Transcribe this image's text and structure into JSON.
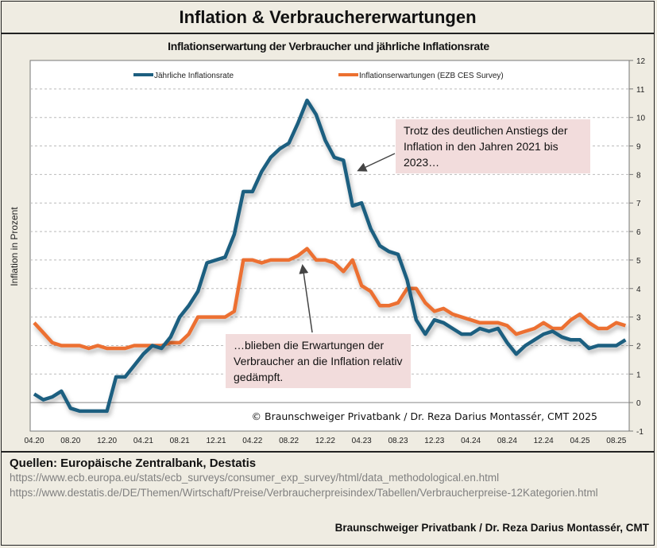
{
  "header": {
    "title": "Inflation & Verbrauchererwartungen"
  },
  "chart_data": {
    "type": "line",
    "title": "Inflationserwartung der Verbraucher und jährliche Inflationsrate",
    "ylabel": "Inflation in Prozent",
    "xlabel": "",
    "ylim": [
      -1,
      12
    ],
    "yticks": [
      -1,
      0,
      1,
      2,
      3,
      4,
      5,
      6,
      7,
      8,
      9,
      10,
      11,
      12
    ],
    "y_axis_side": "right",
    "grid": "horizontal dashed",
    "legend_placement": "top",
    "start_month": "04.20",
    "end_month": "09.25",
    "xtick_labels": [
      "04.20",
      "08.20",
      "12.20",
      "04.21",
      "08.21",
      "12.21",
      "04.22",
      "08.22",
      "12.22",
      "04.23",
      "08.23",
      "12.23",
      "04.24",
      "08.24",
      "12.24",
      "04.25",
      "08.25"
    ],
    "series": [
      {
        "name": "Jährliche Inflationsrate",
        "color": "#1d5f80",
        "values": [
          0.3,
          0.1,
          0.2,
          0.4,
          -0.2,
          -0.3,
          -0.3,
          -0.3,
          -0.3,
          0.9,
          0.9,
          1.3,
          1.7,
          2.0,
          1.9,
          2.3,
          3.0,
          3.4,
          3.9,
          4.9,
          5.0,
          5.1,
          5.9,
          7.4,
          7.4,
          8.1,
          8.6,
          8.9,
          9.1,
          9.8,
          10.6,
          10.1,
          9.2,
          8.6,
          8.5,
          6.9,
          7.0,
          6.1,
          5.5,
          5.3,
          5.2,
          4.3,
          2.9,
          2.4,
          2.9,
          2.8,
          2.6,
          2.4,
          2.4,
          2.6,
          2.5,
          2.6,
          2.1,
          1.7,
          2.0,
          2.2,
          2.4,
          2.5,
          2.3,
          2.2,
          2.2,
          1.9,
          2.0,
          2.0,
          2.0,
          2.2
        ]
      },
      {
        "name": "Inflationserwartungen (EZB CES Survey)",
        "color": "#ec7030",
        "values": [
          2.8,
          2.45,
          2.1,
          2.0,
          2.0,
          2.0,
          1.9,
          2.0,
          1.9,
          1.9,
          1.9,
          2.0,
          2.0,
          2.0,
          2.0,
          2.1,
          2.1,
          2.4,
          3.0,
          3.0,
          3.0,
          3.0,
          3.2,
          5.0,
          5.0,
          4.9,
          5.0,
          5.0,
          5.0,
          5.15,
          5.4,
          5.0,
          5.0,
          4.9,
          4.6,
          5.0,
          4.1,
          3.9,
          3.4,
          3.4,
          3.5,
          4.0,
          4.0,
          3.5,
          3.2,
          3.3,
          3.1,
          3.0,
          2.9,
          2.8,
          2.8,
          2.8,
          2.7,
          2.4,
          2.5,
          2.6,
          2.8,
          2.6,
          2.6,
          2.9,
          3.1,
          2.8,
          2.6,
          2.6,
          2.8,
          2.7
        ]
      }
    ],
    "annotations": [
      "Trotz des deutlichen Anstiegs der Inflation in den Jahren 2021 bis 2023…",
      "…blieben die Erwartungen der Verbraucher an die Inflation relativ gedämpft."
    ],
    "copyright": "© Braunschweiger Privatbank / Dr. Reza Darius Montassér, CMT  2025"
  },
  "footer": {
    "sources": "Quellen: Europäische Zentralbank, Destatis",
    "urls": [
      "https://www.ecb.europa.eu/stats/ecb_surveys/consumer_exp_survey/html/data_methodological.en.html",
      "https://www.destatis.de/DE/Themen/Wirtschaft/Preise/Verbraucherpreisindex/Tabellen/Verbraucherpreise-12Kategorien.html"
    ],
    "credit": "Braunschweiger Privatbank / Dr. Reza Darius Montassér, CMT"
  }
}
